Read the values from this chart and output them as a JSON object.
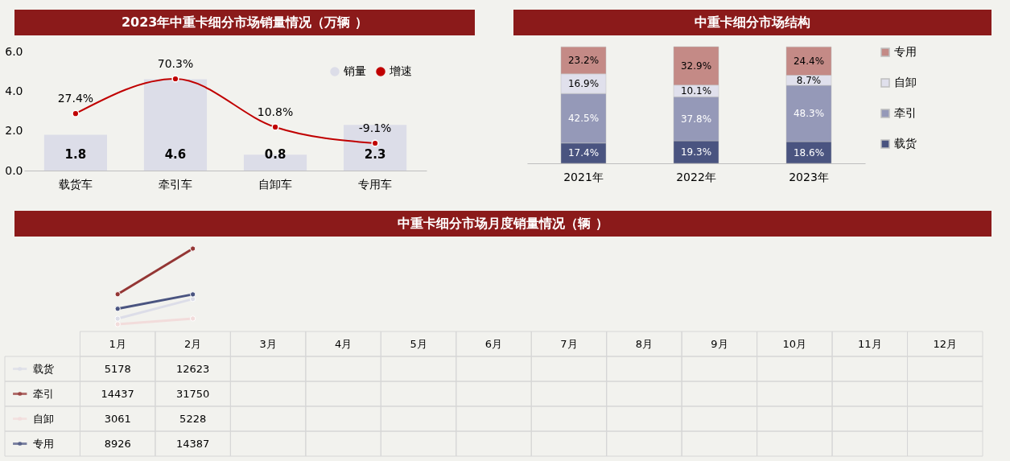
{
  "chart_data": [
    {
      "type": "bar",
      "title": "2023年中重卡细分市场销量情况（万辆 ）",
      "categories": [
        "载货车",
        "牵引车",
        "自卸车",
        "专用车"
      ],
      "series": [
        {
          "name": "销量",
          "type": "bar",
          "color": "#dcdde8",
          "values": [
            1.8,
            4.6,
            0.8,
            2.3
          ],
          "value_labels": [
            "1.8",
            "4.6",
            "0.8",
            "2.3"
          ]
        },
        {
          "name": "增速",
          "type": "line",
          "axis": "y2",
          "color": "#c00000",
          "values": [
            27.4,
            70.3,
            10.8,
            -9.1
          ],
          "value_labels": [
            "27.4%",
            "70.3%",
            "10.8%",
            "-9.1%"
          ]
        }
      ],
      "ylim": [
        0,
        6
      ],
      "yticks": [
        {
          "value": 0,
          "label": "0.0"
        },
        {
          "value": 2,
          "label": "2.0"
        },
        {
          "value": 4,
          "label": "4.0"
        },
        {
          "value": 6,
          "label": "6.0"
        }
      ],
      "legend": "top right",
      "marker": "circle",
      "grid": false
    },
    {
      "type": "bar",
      "title": "中重卡细分市场结构",
      "stacked": true,
      "categories": [
        "2021年",
        "2022年",
        "2023年"
      ],
      "series": [
        {
          "name": "载货",
          "color": "#4a5480",
          "values": [
            17.4,
            19.3,
            18.6
          ],
          "value_labels": [
            "17.4%",
            "19.3%",
            "18.6%"
          ]
        },
        {
          "name": "牵引",
          "color": "#9599b8",
          "values": [
            42.5,
            37.8,
            48.3
          ],
          "value_labels": [
            "42.5%",
            "37.8%",
            "48.3%"
          ]
        },
        {
          "name": "自卸",
          "color": "#e0e0ec",
          "values": [
            16.9,
            10.1,
            8.7
          ],
          "value_labels": [
            "16.9%",
            "10.1%",
            "8.7%"
          ]
        },
        {
          "name": "专用",
          "color": "#c48a86",
          "values": [
            23.2,
            32.9,
            24.4
          ],
          "value_labels": [
            "23.2%",
            "32.9%",
            "24.4%"
          ]
        }
      ],
      "legend": "right"
    },
    {
      "type": "line",
      "title": "中重卡细分市场月度销量情况（辆 ）",
      "categories": [
        "1月",
        "2月",
        "3月",
        "4月",
        "5月",
        "6月",
        "7月",
        "8月",
        "9月",
        "10月",
        "11月",
        "12月"
      ],
      "series": [
        {
          "name": "载货",
          "color": "#dcdde8",
          "values": [
            5178,
            12623,
            null,
            null,
            null,
            null,
            null,
            null,
            null,
            null,
            null,
            null
          ]
        },
        {
          "name": "牵引",
          "color": "#943634",
          "values": [
            14437,
            31750,
            null,
            null,
            null,
            null,
            null,
            null,
            null,
            null,
            null,
            null
          ]
        },
        {
          "name": "自卸",
          "color": "#f2dcdb",
          "values": [
            3061,
            5228,
            null,
            null,
            null,
            null,
            null,
            null,
            null,
            null,
            null,
            null
          ]
        },
        {
          "name": "专用",
          "color": "#4a5480",
          "values": [
            8926,
            14387,
            null,
            null,
            null,
            null,
            null,
            null,
            null,
            null,
            null,
            null
          ]
        }
      ],
      "data_labels": true,
      "legend": "left",
      "marker": "circle"
    }
  ]
}
